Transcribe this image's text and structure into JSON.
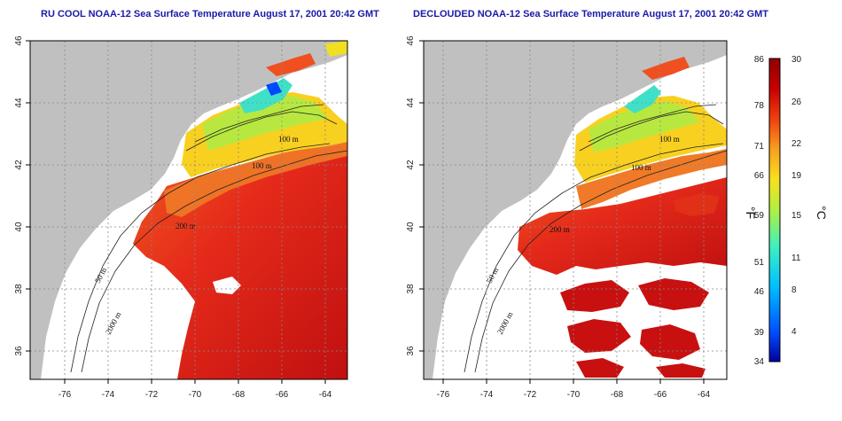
{
  "left_panel": {
    "title": "RU COOL NOAA-12 Sea Surface Temperature August 17, 2001 20:42 GMT"
  },
  "right_panel": {
    "title": "DECLOUDED NOAA-12 Sea Surface Temperature August 17, 2001 20:42 GMT"
  },
  "axes": {
    "x_ticks": [
      "-76",
      "-74",
      "-72",
      "-70",
      "-68",
      "-66",
      "-64"
    ],
    "y_ticks": [
      "46",
      "44",
      "42",
      "40",
      "38",
      "36"
    ]
  },
  "contour_labels": {
    "m100": "100 m",
    "m200": "200 m",
    "m50": "50 m",
    "m2000": "2000 m"
  },
  "colorbar": {
    "fahrenheit_ticks": [
      "86",
      "78",
      "71",
      "66",
      "59",
      "51",
      "46",
      "39",
      "34"
    ],
    "celsius_ticks": [
      "30",
      "26",
      "22",
      "19",
      "15",
      "11",
      "8",
      "4"
    ],
    "fahrenheit_unit": "°F",
    "celsius_unit": "°C",
    "range_celsius": [
      1,
      30
    ],
    "colors": [
      "#0000b0",
      "#0060ff",
      "#00c8ff",
      "#40f0c0",
      "#b0f040",
      "#f8e020",
      "#f8a020",
      "#f04010",
      "#c80000",
      "#900000"
    ]
  },
  "colors": {
    "land": "#c0c0c0",
    "ocean_white": "#ffffff",
    "warm": "#e8281a",
    "hot": "#c81010",
    "orange": "#f06a20"
  }
}
